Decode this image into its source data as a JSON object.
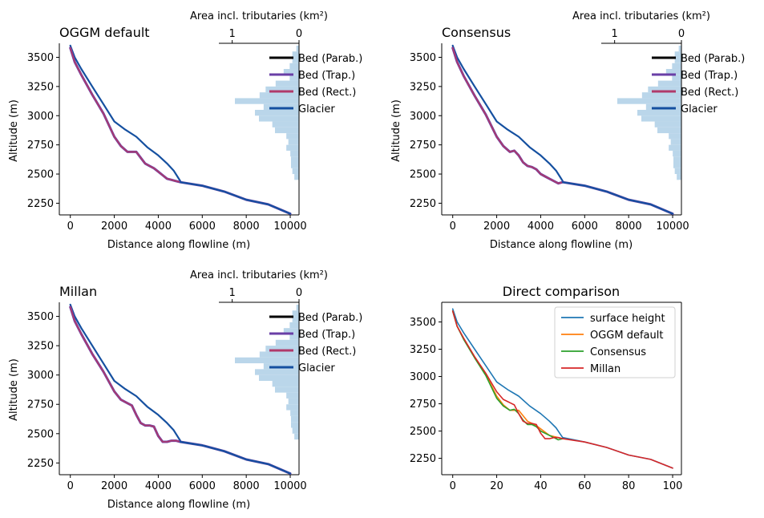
{
  "figure": {
    "layout": "2x2"
  },
  "chart_data": [
    {
      "type": "line",
      "panel": "oggm",
      "title": "OGGM default",
      "xlabel": "Distance along flowline (m)",
      "ylabel": "Altitude (m)",
      "xlim": [
        -500,
        10400
      ],
      "ylim": [
        2150,
        3620
      ],
      "xticks": [
        0,
        2000,
        4000,
        6000,
        8000,
        10000
      ],
      "yticks": [
        2250,
        2500,
        2750,
        3000,
        3250,
        3500
      ],
      "hist": {
        "xlabel": "Area incl. tributaries (km²)",
        "xticks": [
          1,
          0
        ],
        "xlim_km2": [
          1.2,
          0
        ],
        "bin_edges": [
          3600,
          3550,
          3500,
          3450,
          3400,
          3350,
          3300,
          3250,
          3200,
          3150,
          3100,
          3050,
          3000,
          2950,
          2900,
          2850,
          2800,
          2750,
          2700,
          2650,
          2600,
          2550,
          2500,
          2450
        ],
        "areas_km2": [
          0.04,
          0.1,
          0.1,
          0.14,
          0.23,
          0.14,
          0.35,
          0.5,
          0.59,
          0.96,
          0.53,
          0.66,
          0.6,
          0.4,
          0.36,
          0.19,
          0.16,
          0.19,
          0.13,
          0.12,
          0.12,
          0.1,
          0.07
        ]
      },
      "legend": [
        "Bed (Parab.)",
        "Bed (Trap.)",
        "Bed (Rect.)",
        "Glacier"
      ],
      "legend_colors": [
        "#000000",
        "#6a3fa6",
        "#b03a6a",
        "#1550a0"
      ],
      "series": [
        {
          "name": "Glacier",
          "color": "#1550a0",
          "x": [
            0,
            200,
            500,
            1000,
            1500,
            2000,
            2500,
            3000,
            3500,
            4000,
            4400,
            4700,
            4900,
            5000
          ],
          "y": [
            3600,
            3500,
            3400,
            3250,
            3100,
            2950,
            2880,
            2820,
            2730,
            2660,
            2590,
            2530,
            2470,
            2440
          ]
        },
        {
          "name": "Bed (Trap.)",
          "color": "#6a3fa6",
          "x": [
            0,
            200,
            500,
            1000,
            1500,
            2000,
            2300,
            2600,
            2800,
            3000,
            3200,
            3400,
            3600,
            3800,
            4000,
            4200,
            4400,
            4600,
            4800,
            5000,
            6000,
            7000,
            8000,
            9000,
            10000
          ],
          "y": [
            3580,
            3460,
            3350,
            3180,
            3020,
            2820,
            2740,
            2690,
            2690,
            2690,
            2640,
            2590,
            2570,
            2550,
            2520,
            2490,
            2460,
            2450,
            2440,
            2430,
            2400,
            2350,
            2280,
            2240,
            2160
          ]
        },
        {
          "name": "Bed (Rect.)",
          "color": "#b03a6a",
          "x": [
            0,
            200,
            500,
            1000,
            1500,
            2000,
            2300,
            2600,
            2800,
            3000,
            3200,
            3400,
            3600,
            3800,
            4000,
            4200,
            4400,
            4600,
            4800,
            5000,
            6000,
            7000,
            8000,
            9000,
            10000
          ],
          "y": [
            3580,
            3460,
            3350,
            3180,
            3020,
            2820,
            2740,
            2690,
            2690,
            2690,
            2640,
            2590,
            2570,
            2550,
            2520,
            2490,
            2460,
            2450,
            2440,
            2430,
            2400,
            2350,
            2280,
            2240,
            2160
          ]
        },
        {
          "name": "Glacier",
          "color": "#1550a0",
          "x": [
            5000,
            6000,
            7000,
            8000,
            9000,
            10000
          ],
          "y": [
            2430,
            2400,
            2350,
            2280,
            2240,
            2160
          ]
        }
      ]
    },
    {
      "type": "line",
      "panel": "consensus",
      "title": "Consensus",
      "xlabel": "Distance along flowline (m)",
      "ylabel": "Altitude (m)",
      "xlim": [
        -500,
        10400
      ],
      "ylim": [
        2150,
        3620
      ],
      "xticks": [
        0,
        2000,
        4000,
        6000,
        8000,
        10000
      ],
      "yticks": [
        2250,
        2500,
        2750,
        3000,
        3250,
        3500
      ],
      "hist": {
        "xlabel": "Area incl. tributaries (km²)",
        "xticks": [
          1,
          0
        ],
        "xlim_km2": [
          1.2,
          0
        ],
        "bin_edges": [
          3600,
          3550,
          3500,
          3450,
          3400,
          3350,
          3300,
          3250,
          3200,
          3150,
          3100,
          3050,
          3000,
          2950,
          2900,
          2850,
          2800,
          2750,
          2700,
          2650,
          2600,
          2550,
          2500,
          2450
        ],
        "areas_km2": [
          0.04,
          0.1,
          0.1,
          0.14,
          0.23,
          0.14,
          0.35,
          0.5,
          0.59,
          0.96,
          0.53,
          0.66,
          0.6,
          0.4,
          0.36,
          0.19,
          0.16,
          0.19,
          0.13,
          0.12,
          0.12,
          0.1,
          0.07
        ]
      },
      "legend": [
        "Bed (Parab.)",
        "Bed (Trap.)",
        "Bed (Rect.)",
        "Glacier"
      ],
      "legend_colors": [
        "#000000",
        "#6a3fa6",
        "#b03a6a",
        "#1550a0"
      ],
      "series": [
        {
          "name": "Glacier",
          "color": "#1550a0",
          "x": [
            0,
            200,
            500,
            1000,
            1500,
            2000,
            2500,
            3000,
            3500,
            4000,
            4400,
            4700,
            4900,
            5000
          ],
          "y": [
            3600,
            3500,
            3400,
            3250,
            3100,
            2950,
            2880,
            2820,
            2730,
            2660,
            2590,
            2530,
            2470,
            2440
          ]
        },
        {
          "name": "Bed (Trap.)",
          "color": "#6a3fa6",
          "x": [
            0,
            200,
            500,
            1000,
            1500,
            2000,
            2300,
            2600,
            2800,
            3000,
            3200,
            3400,
            3600,
            3800,
            4000,
            4200,
            4400,
            4600,
            4800,
            5000,
            6000,
            7000,
            8000,
            9000,
            10000
          ],
          "y": [
            3580,
            3460,
            3340,
            3170,
            3010,
            2820,
            2740,
            2690,
            2700,
            2660,
            2600,
            2570,
            2560,
            2540,
            2500,
            2480,
            2460,
            2440,
            2420,
            2430,
            2400,
            2350,
            2280,
            2240,
            2160
          ]
        },
        {
          "name": "Bed (Rect.)",
          "color": "#b03a6a",
          "x": [
            0,
            200,
            500,
            1000,
            1500,
            2000,
            2300,
            2600,
            2800,
            3000,
            3200,
            3400,
            3600,
            3800,
            4000,
            4200,
            4400,
            4600,
            4800,
            5000,
            6000,
            7000,
            8000,
            9000,
            10000
          ],
          "y": [
            3580,
            3460,
            3340,
            3170,
            3010,
            2820,
            2740,
            2690,
            2700,
            2660,
            2600,
            2570,
            2560,
            2540,
            2500,
            2480,
            2460,
            2440,
            2420,
            2430,
            2400,
            2350,
            2280,
            2240,
            2160
          ]
        },
        {
          "name": "Glacier",
          "color": "#1550a0",
          "x": [
            5000,
            6000,
            7000,
            8000,
            9000,
            10000
          ],
          "y": [
            2430,
            2400,
            2350,
            2280,
            2240,
            2160
          ]
        }
      ]
    },
    {
      "type": "line",
      "panel": "millan",
      "title": "Millan",
      "xlabel": "Distance along flowline (m)",
      "ylabel": "Altitude (m)",
      "xlim": [
        -500,
        10400
      ],
      "ylim": [
        2150,
        3620
      ],
      "xticks": [
        0,
        2000,
        4000,
        6000,
        8000,
        10000
      ],
      "yticks": [
        2250,
        2500,
        2750,
        3000,
        3250,
        3500
      ],
      "hist": {
        "xlabel": "Area incl. tributaries (km²)",
        "xticks": [
          1,
          0
        ],
        "xlim_km2": [
          1.2,
          0
        ],
        "bin_edges": [
          3600,
          3550,
          3500,
          3450,
          3400,
          3350,
          3300,
          3250,
          3200,
          3150,
          3100,
          3050,
          3000,
          2950,
          2900,
          2850,
          2800,
          2750,
          2700,
          2650,
          2600,
          2550,
          2500,
          2450
        ],
        "areas_km2": [
          0.04,
          0.1,
          0.1,
          0.14,
          0.23,
          0.14,
          0.35,
          0.5,
          0.59,
          0.96,
          0.53,
          0.66,
          0.6,
          0.4,
          0.36,
          0.19,
          0.16,
          0.19,
          0.13,
          0.12,
          0.12,
          0.1,
          0.07
        ]
      },
      "legend": [
        "Bed (Parab.)",
        "Bed (Trap.)",
        "Bed (Rect.)",
        "Glacier"
      ],
      "legend_colors": [
        "#000000",
        "#6a3fa6",
        "#b03a6a",
        "#1550a0"
      ],
      "series": [
        {
          "name": "Glacier",
          "color": "#1550a0",
          "x": [
            0,
            200,
            500,
            1000,
            1500,
            2000,
            2500,
            3000,
            3500,
            4000,
            4400,
            4700,
            4900,
            5000
          ],
          "y": [
            3600,
            3500,
            3400,
            3250,
            3100,
            2950,
            2880,
            2820,
            2730,
            2660,
            2590,
            2530,
            2470,
            2440
          ]
        },
        {
          "name": "Bed (Trap.)",
          "color": "#6a3fa6",
          "x": [
            0,
            200,
            500,
            1000,
            1500,
            2000,
            2300,
            2600,
            2800,
            3000,
            3200,
            3400,
            3600,
            3800,
            4000,
            4200,
            4400,
            4600,
            4800,
            5000,
            6000,
            7000,
            8000,
            9000,
            10000
          ],
          "y": [
            3580,
            3460,
            3350,
            3180,
            3030,
            2860,
            2790,
            2760,
            2740,
            2660,
            2590,
            2570,
            2570,
            2560,
            2480,
            2430,
            2430,
            2440,
            2440,
            2430,
            2400,
            2350,
            2280,
            2240,
            2160
          ]
        },
        {
          "name": "Bed (Rect.)",
          "color": "#b03a6a",
          "x": [
            0,
            200,
            500,
            1000,
            1500,
            2000,
            2300,
            2600,
            2800,
            3000,
            3200,
            3400,
            3600,
            3800,
            4000,
            4200,
            4400,
            4600,
            4800,
            5000,
            6000,
            7000,
            8000,
            9000,
            10000
          ],
          "y": [
            3580,
            3460,
            3350,
            3180,
            3030,
            2860,
            2790,
            2760,
            2740,
            2660,
            2590,
            2570,
            2570,
            2560,
            2480,
            2430,
            2430,
            2440,
            2440,
            2430,
            2400,
            2350,
            2280,
            2240,
            2160
          ]
        },
        {
          "name": "Glacier",
          "color": "#1550a0",
          "x": [
            5000,
            6000,
            7000,
            8000,
            9000,
            10000
          ],
          "y": [
            2430,
            2400,
            2350,
            2280,
            2240,
            2160
          ]
        }
      ]
    },
    {
      "type": "line",
      "panel": "comparison",
      "title": "Direct comparison",
      "xlabel": "",
      "ylabel": "",
      "xlim": [
        -5,
        104
      ],
      "ylim": [
        2100,
        3680
      ],
      "xticks": [
        0,
        20,
        40,
        60,
        80,
        100
      ],
      "yticks": [
        2250,
        2500,
        2750,
        3000,
        3250,
        3500
      ],
      "legend": [
        "surface height",
        "OGGM default",
        "Consensus",
        "Millan"
      ],
      "legend_colors": [
        "#1f77b4",
        "#ff7f0e",
        "#2ca02c",
        "#d62728"
      ],
      "series": [
        {
          "name": "surface height",
          "color": "#1f77b4",
          "x": [
            0,
            2,
            5,
            10,
            15,
            20,
            25,
            30,
            35,
            40,
            44,
            47,
            49,
            50,
            60,
            70,
            80,
            90,
            100
          ],
          "y": [
            3620,
            3500,
            3400,
            3250,
            3100,
            2950,
            2880,
            2820,
            2730,
            2660,
            2590,
            2530,
            2470,
            2440,
            2400,
            2350,
            2280,
            2240,
            2160
          ]
        },
        {
          "name": "OGGM default",
          "color": "#ff7f0e",
          "x": [
            0,
            2,
            5,
            10,
            15,
            20,
            23,
            26,
            28,
            30,
            32,
            34,
            36,
            38,
            40,
            42,
            44,
            46,
            48,
            50
          ],
          "y": [
            3600,
            3460,
            3350,
            3180,
            3020,
            2820,
            2740,
            2690,
            2690,
            2690,
            2640,
            2590,
            2570,
            2550,
            2520,
            2490,
            2460,
            2450,
            2440,
            2430
          ]
        },
        {
          "name": "Consensus",
          "color": "#2ca02c",
          "x": [
            0,
            2,
            5,
            10,
            15,
            20,
            23,
            26,
            28,
            30,
            32,
            34,
            36,
            38,
            40,
            42,
            44,
            46,
            48,
            50
          ],
          "y": [
            3600,
            3460,
            3340,
            3170,
            3010,
            2800,
            2730,
            2690,
            2700,
            2660,
            2600,
            2560,
            2560,
            2540,
            2500,
            2480,
            2460,
            2440,
            2420,
            2430
          ]
        },
        {
          "name": "Millan",
          "color": "#d62728",
          "x": [
            0,
            2,
            5,
            10,
            15,
            20,
            23,
            26,
            28,
            30,
            32,
            34,
            36,
            38,
            40,
            42,
            44,
            46,
            48,
            50,
            60,
            70,
            80,
            90,
            100
          ],
          "y": [
            3600,
            3460,
            3350,
            3180,
            3030,
            2860,
            2790,
            2760,
            2740,
            2660,
            2590,
            2570,
            2570,
            2560,
            2480,
            2430,
            2430,
            2440,
            2440,
            2430,
            2400,
            2350,
            2280,
            2240,
            2160
          ]
        }
      ]
    }
  ]
}
